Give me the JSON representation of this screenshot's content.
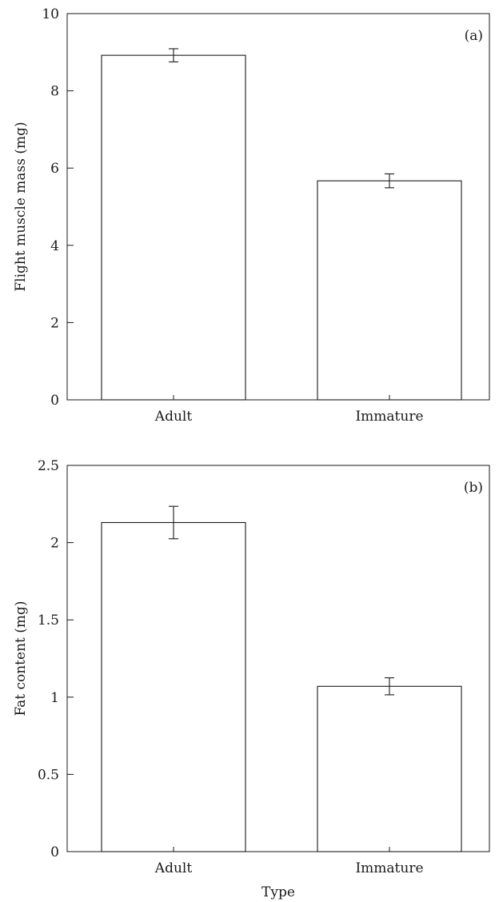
{
  "chart_data": [
    {
      "type": "bar",
      "panel_label": "(a)",
      "categories": [
        "Adult",
        "Immature"
      ],
      "values": [
        8.92,
        5.67
      ],
      "errors": [
        0.17,
        0.18
      ],
      "ylabel": "Flight muscle mass (mg)",
      "xlabel": "",
      "ylim": [
        0,
        10
      ],
      "yticks": [
        0,
        2,
        4,
        6,
        8,
        10
      ],
      "ytick_labels": [
        "0",
        "2",
        "4",
        "6",
        "8",
        "10"
      ],
      "grid": false
    },
    {
      "type": "bar",
      "panel_label": "(b)",
      "categories": [
        "Adult",
        "Immature"
      ],
      "values": [
        2.13,
        1.07
      ],
      "errors": [
        0.105,
        0.055
      ],
      "ylabel": "Fat content (mg)",
      "xlabel": "Type",
      "ylim": [
        0,
        2.5
      ],
      "yticks": [
        0,
        0.5,
        1,
        1.5,
        2,
        2.5
      ],
      "ytick_labels": [
        "0",
        "0.5",
        "1",
        "1.5",
        "2",
        "2.5"
      ],
      "grid": false
    }
  ]
}
